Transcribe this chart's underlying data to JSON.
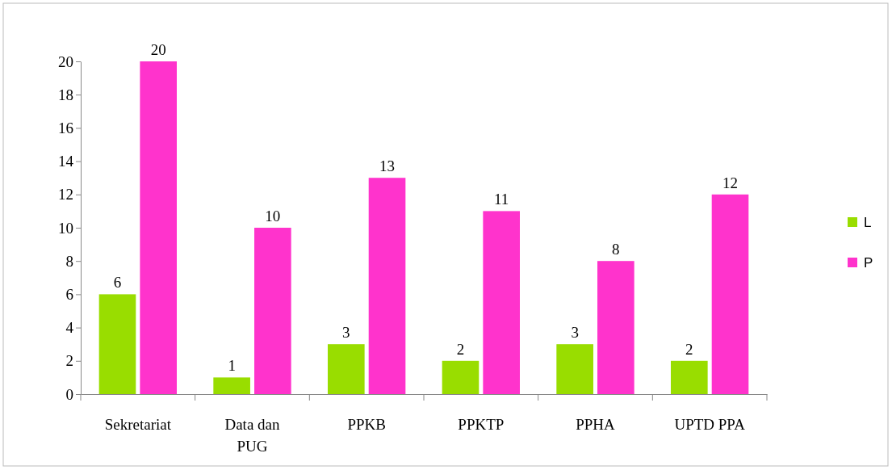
{
  "chart_data": {
    "type": "bar",
    "categories": [
      "Sekretariat",
      "Data dan PUG",
      "PPKB",
      "PPKTP",
      "PPHA",
      "UPTD PPA"
    ],
    "series": [
      {
        "name": "L",
        "color": "#99dd00",
        "values": [
          6,
          1,
          3,
          2,
          3,
          2
        ]
      },
      {
        "name": "P",
        "color": "#ff33cc",
        "values": [
          20,
          10,
          13,
          11,
          8,
          12
        ]
      }
    ],
    "ylim": [
      0,
      20
    ],
    "yticks": [
      0,
      2,
      4,
      6,
      8,
      10,
      12,
      14,
      16,
      18,
      20
    ],
    "grid": false,
    "legend": "right",
    "data_labels": true
  }
}
